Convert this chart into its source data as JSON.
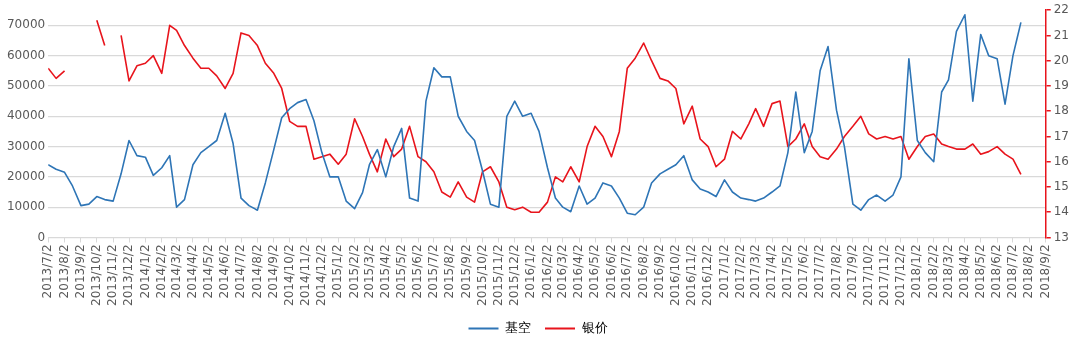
{
  "chart_data": {
    "type": "line",
    "x": [
      "2013-07-02",
      "2013-07-17",
      "2013-08-02",
      "2013-08-17",
      "2013-09-02",
      "2013-09-17",
      "2013-10-02",
      "2013-10-17",
      "2013-11-02",
      "2013-11-17",
      "2013-12-02",
      "2013-12-17",
      "2014-01-02",
      "2014-01-17",
      "2014-02-02",
      "2014-02-17",
      "2014-03-02",
      "2014-03-17",
      "2014-04-02",
      "2014-04-17",
      "2014-05-02",
      "2014-05-17",
      "2014-06-02",
      "2014-06-17",
      "2014-07-02",
      "2014-07-17",
      "2014-08-02",
      "2014-08-17",
      "2014-09-02",
      "2014-09-17",
      "2014-10-02",
      "2014-10-17",
      "2014-11-02",
      "2014-11-17",
      "2014-12-02",
      "2014-12-17",
      "2015-01-02",
      "2015-01-17",
      "2015-02-02",
      "2015-02-17",
      "2015-03-02",
      "2015-03-17",
      "2015-04-02",
      "2015-04-17",
      "2015-05-02",
      "2015-05-17",
      "2015-06-02",
      "2015-06-17",
      "2015-07-02",
      "2015-07-17",
      "2015-08-02",
      "2015-08-17",
      "2015-09-02",
      "2015-09-17",
      "2015-10-02",
      "2015-10-17",
      "2015-11-02",
      "2015-11-17",
      "2015-12-02",
      "2015-12-17",
      "2016-01-02",
      "2016-01-17",
      "2016-02-02",
      "2016-02-17",
      "2016-03-02",
      "2016-03-17",
      "2016-04-02",
      "2016-04-17",
      "2016-05-02",
      "2016-05-17",
      "2016-06-02",
      "2016-06-17",
      "2016-07-02",
      "2016-07-17",
      "2016-08-02",
      "2016-08-17",
      "2016-09-02",
      "2016-09-17",
      "2016-10-02",
      "2016-10-17",
      "2016-11-02",
      "2016-11-17",
      "2016-12-02",
      "2016-12-17",
      "2017-01-02",
      "2017-01-17",
      "2017-02-02",
      "2017-02-17",
      "2017-03-02",
      "2017-03-17",
      "2017-04-02",
      "2017-04-17",
      "2017-05-02",
      "2017-05-17",
      "2017-06-02",
      "2017-06-17",
      "2017-07-02",
      "2017-07-17",
      "2017-08-02",
      "2017-08-17",
      "2017-09-02",
      "2017-09-17",
      "2017-10-02",
      "2017-10-17",
      "2017-11-02",
      "2017-11-17",
      "2017-12-02",
      "2017-12-17",
      "2018-01-02",
      "2018-01-17",
      "2018-02-02",
      "2018-02-17",
      "2018-03-02",
      "2018-03-17",
      "2018-04-02",
      "2018-04-17",
      "2018-05-02",
      "2018-05-17",
      "2018-06-02",
      "2018-06-17",
      "2018-07-02",
      "2018-07-17"
    ],
    "series": [
      {
        "name": "基空",
        "color": "#2e75b6",
        "values": [
          24000,
          22500,
          21500,
          17000,
          10500,
          11000,
          13500,
          12500,
          12000,
          21000,
          32000,
          27000,
          26500,
          20500,
          23000,
          27000,
          10000,
          12500,
          24000,
          28000,
          30000,
          32000,
          41000,
          31000,
          13000,
          10500,
          9000,
          18000,
          29000,
          39500,
          42500,
          44500,
          45500,
          38500,
          28000,
          20000,
          20000,
          12000,
          9500,
          14800,
          24000,
          29000,
          20000,
          30000,
          36000,
          13000,
          12000,
          45000,
          56000,
          53000,
          53000,
          40000,
          35000,
          32000,
          22000,
          11000,
          10000,
          40000,
          45000,
          40000,
          41000,
          35000,
          23000,
          13000,
          10000,
          8500,
          17000,
          11000,
          13000,
          18000,
          17000,
          13000,
          8000,
          7500,
          10000,
          18000,
          21000,
          22500,
          24000,
          27000,
          19000,
          16000,
          15000,
          13500,
          19000,
          15000,
          13000,
          12500,
          12000,
          13000,
          15000,
          17000,
          28000,
          48000,
          28000,
          35000,
          55000,
          63000,
          42000,
          30000,
          11000,
          9000,
          12500,
          14000,
          12000,
          14000,
          20000,
          59000,
          32000,
          28000,
          25000,
          48000,
          52000,
          68000,
          73500,
          45000,
          67000,
          60000,
          59000,
          44000,
          60000,
          71000
        ]
      },
      {
        "name": "银价",
        "color": "#e8141c",
        "axis": "y2",
        "values": [
          19.7,
          19.3,
          19.6,
          null,
          null,
          null,
          21.6,
          20.6,
          null,
          21.0,
          19.2,
          19.8,
          19.9,
          20.2,
          19.5,
          21.4,
          21.2,
          20.6,
          20.1,
          19.7,
          19.7,
          19.4,
          18.9,
          19.5,
          21.1,
          21.0,
          20.6,
          19.9,
          19.5,
          18.9,
          17.6,
          17.4,
          17.4,
          16.1,
          16.2,
          16.3,
          15.9,
          16.3,
          17.7,
          17.0,
          16.3,
          15.6,
          16.9,
          16.2,
          16.5,
          17.4,
          16.2,
          16.0,
          15.6,
          14.8,
          14.6,
          15.2,
          14.6,
          14.4,
          15.6,
          15.8,
          15.2,
          14.2,
          14.1,
          14.2,
          14.0,
          14.0,
          14.4,
          15.4,
          15.2,
          15.8,
          15.2,
          16.6,
          17.4,
          17.0,
          16.2,
          17.2,
          19.7,
          20.1,
          20.7,
          20.0,
          19.3,
          19.2,
          18.9,
          17.5,
          18.2,
          16.9,
          16.6,
          15.8,
          16.1,
          17.2,
          16.9,
          17.5,
          18.1,
          17.4,
          18.3,
          18.4,
          16.6,
          16.9,
          17.5,
          16.6,
          16.2,
          16.1,
          16.5,
          17.0,
          17.4,
          17.8,
          17.1,
          16.9,
          17.0,
          16.9,
          17.0,
          16.1,
          16.6,
          17.0,
          17.1,
          16.7,
          16.6,
          16.5,
          16.5,
          16.7,
          16.3,
          16.4,
          16.6,
          16.3,
          16.1,
          15.5
        ]
      }
    ],
    "xlim": [
      "2013-07-02",
      "2018-09-02"
    ],
    "xticks": [
      {
        "value": "2013-07-02",
        "label": "2013/7/2"
      },
      {
        "value": "2013-08-02",
        "label": "2013/8/2"
      },
      {
        "value": "2013-09-02",
        "label": "2013/9/2"
      },
      {
        "value": "2013-10-02",
        "label": "2013/10/2"
      },
      {
        "value": "2013-11-02",
        "label": "2013/11/2"
      },
      {
        "value": "2013-12-02",
        "label": "2013/12/2"
      },
      {
        "value": "2014-01-02",
        "label": "2014/1/2"
      },
      {
        "value": "2014-02-02",
        "label": "2014/2/2"
      },
      {
        "value": "2014-03-02",
        "label": "2014/3/2"
      },
      {
        "value": "2014-04-02",
        "label": "2014/4/2"
      },
      {
        "value": "2014-05-02",
        "label": "2014/5/2"
      },
      {
        "value": "2014-06-02",
        "label": "2014/6/2"
      },
      {
        "value": "2014-07-02",
        "label": "2014/7/2"
      },
      {
        "value": "2014-08-02",
        "label": "2014/8/2"
      },
      {
        "value": "2014-09-02",
        "label": "2014/9/2"
      },
      {
        "value": "2014-10-02",
        "label": "2014/10/2"
      },
      {
        "value": "2014-11-02",
        "label": "2014/11/2"
      },
      {
        "value": "2014-12-02",
        "label": "2014/12/2"
      },
      {
        "value": "2015-01-02",
        "label": "2015/1/2"
      },
      {
        "value": "2015-02-02",
        "label": "2015/2/2"
      },
      {
        "value": "2015-03-02",
        "label": "2015/3/2"
      },
      {
        "value": "2015-04-02",
        "label": "2015/4/2"
      },
      {
        "value": "2015-05-02",
        "label": "2015/5/2"
      },
      {
        "value": "2015-06-02",
        "label": "2015/6/2"
      },
      {
        "value": "2015-07-02",
        "label": "2015/7/2"
      },
      {
        "value": "2015-08-02",
        "label": "2015/8/2"
      },
      {
        "value": "2015-09-02",
        "label": "2015/9/2"
      },
      {
        "value": "2015-10-02",
        "label": "2015/10/2"
      },
      {
        "value": "2015-11-02",
        "label": "2015/11/2"
      },
      {
        "value": "2015-12-02",
        "label": "2015/12/2"
      },
      {
        "value": "2016-01-02",
        "label": "2016/1/2"
      },
      {
        "value": "2016-02-02",
        "label": "2016/2/2"
      },
      {
        "value": "2016-03-02",
        "label": "2016/3/2"
      },
      {
        "value": "2016-04-02",
        "label": "2016/4/2"
      },
      {
        "value": "2016-05-02",
        "label": "2016/5/2"
      },
      {
        "value": "2016-06-02",
        "label": "2016/6/2"
      },
      {
        "value": "2016-07-02",
        "label": "2016/7/2"
      },
      {
        "value": "2016-08-02",
        "label": "2016/8/2"
      },
      {
        "value": "2016-09-02",
        "label": "2016/9/2"
      },
      {
        "value": "2016-10-02",
        "label": "2016/10/2"
      },
      {
        "value": "2016-11-02",
        "label": "2016/11/2"
      },
      {
        "value": "2016-12-02",
        "label": "2016/12/2"
      },
      {
        "value": "2017-01-02",
        "label": "2017/1/2"
      },
      {
        "value": "2017-02-02",
        "label": "2017/2/2"
      },
      {
        "value": "2017-03-02",
        "label": "2017/3/2"
      },
      {
        "value": "2017-04-02",
        "label": "2017/4/2"
      },
      {
        "value": "2017-05-02",
        "label": "2017/5/2"
      },
      {
        "value": "2017-06-02",
        "label": "2017/6/2"
      },
      {
        "value": "2017-07-02",
        "label": "2017/7/2"
      },
      {
        "value": "2017-08-02",
        "label": "2017/8/2"
      },
      {
        "value": "2017-09-02",
        "label": "2017/9/2"
      },
      {
        "value": "2017-10-02",
        "label": "2017/10/2"
      },
      {
        "value": "2017-11-02",
        "label": "2017/11/2"
      },
      {
        "value": "2017-12-02",
        "label": "2017/12/2"
      },
      {
        "value": "2018-01-02",
        "label": "2018/1/2"
      },
      {
        "value": "2018-02-02",
        "label": "2018/2/2"
      },
      {
        "value": "2018-03-02",
        "label": "2018/3/2"
      },
      {
        "value": "2018-04-02",
        "label": "2018/4/2"
      },
      {
        "value": "2018-05-02",
        "label": "2018/5/2"
      },
      {
        "value": "2018-06-02",
        "label": "2018/6/2"
      },
      {
        "value": "2018-07-02",
        "label": "2018/7/2"
      },
      {
        "value": "2018-08-02",
        "label": "2018/8/2"
      },
      {
        "value": "2018-09-02",
        "label": "2018/9/2"
      }
    ],
    "ylim": [
      0,
      75000
    ],
    "yticks": [
      0,
      10000,
      20000,
      30000,
      40000,
      50000,
      60000,
      70000
    ],
    "y2lim": [
      13,
      22
    ],
    "y2ticks": [
      13,
      14,
      15,
      16,
      17,
      18,
      19,
      20,
      21,
      22
    ],
    "grid": "y",
    "legend": "bottom",
    "marker": "none"
  }
}
